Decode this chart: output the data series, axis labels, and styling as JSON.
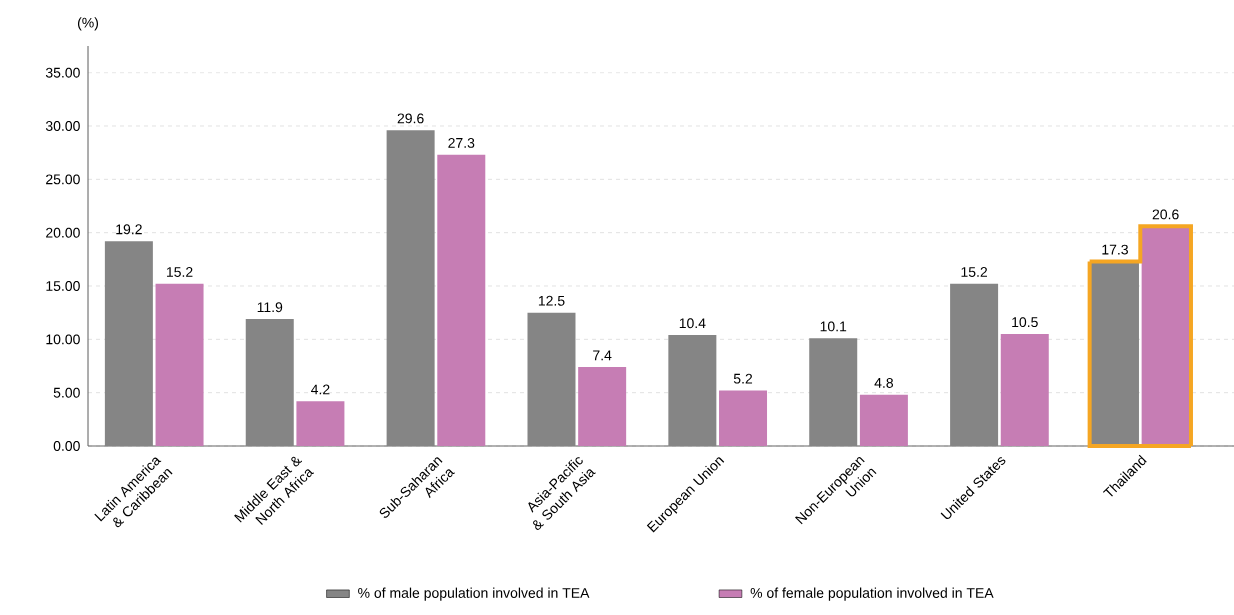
{
  "chart_data": {
    "type": "bar",
    "ylabel": "(%)",
    "categories": [
      "Latin America & Caribbean",
      "Middle East & North Africa",
      "Sub-Saharan Africa",
      "Asia-Pacific & South Asia",
      "European Union",
      "Non-European Union",
      "United States",
      "Thailand"
    ],
    "series": [
      {
        "name": "% of male population involved in TEA",
        "color": "#858585",
        "values": [
          19.2,
          11.9,
          29.6,
          12.5,
          10.4,
          10.1,
          15.2,
          17.3
        ]
      },
      {
        "name": "% of female population involved in TEA",
        "color": "#c67db4",
        "values": [
          15.2,
          4.2,
          27.3,
          7.4,
          5.2,
          4.8,
          10.5,
          20.6
        ]
      }
    ],
    "ylim": [
      0,
      37.5
    ],
    "yticks": [
      {
        "value": 0,
        "label": "0.00"
      },
      {
        "value": 5,
        "label": "5.00"
      },
      {
        "value": 10,
        "label": "10.00"
      },
      {
        "value": 15,
        "label": "15.00"
      },
      {
        "value": 20,
        "label": "20.00"
      },
      {
        "value": 25,
        "label": "25.00"
      },
      {
        "value": 30,
        "label": "30.00"
      },
      {
        "value": 35,
        "label": "35.00"
      }
    ],
    "grid": "y",
    "legend": "bottom",
    "data_labels": true
  }
}
